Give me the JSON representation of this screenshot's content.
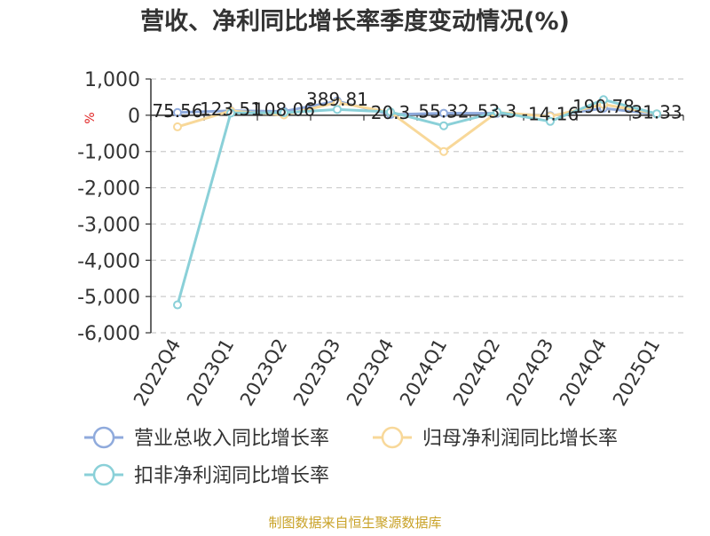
{
  "footer": "制图数据来自恒生聚源数据库",
  "chart_data": {
    "type": "line",
    "title": "营收、净利同比增长率季度变动情况(%)",
    "ylabel": "%",
    "xlabel": "",
    "categories": [
      "2022Q4",
      "2023Q1",
      "2023Q2",
      "2023Q3",
      "2023Q4",
      "2024Q1",
      "2024Q2",
      "2024Q3",
      "2024Q4",
      "2025Q1"
    ],
    "ylim": [
      -6000,
      1000
    ],
    "yticks": [
      1000,
      0,
      -1000,
      -2000,
      -3000,
      -4000,
      -5000,
      -6000
    ],
    "ytick_labels": [
      "1,000",
      "0",
      "-1,000",
      "-2,000",
      "-3,000",
      "-4,000",
      "-5,000",
      "-6,000"
    ],
    "grid": true,
    "legend_position": "bottom",
    "series": [
      {
        "name": "营业总收入同比增长率",
        "color": "#8faadc",
        "values": [
          75.56,
          123.51,
          108.06,
          389.81,
          20.3,
          55.32,
          53.3,
          -14.16,
          190.78,
          31.33
        ],
        "labels": [
          "75.56",
          "123.51",
          "108.06",
          "389.81",
          "20.3",
          "55.32",
          "53.3",
          "-14.16",
          "190.78",
          "31.33"
        ]
      },
      {
        "name": "归母净利润同比增长率",
        "color": "#f8d899",
        "values": [
          -320,
          120,
          10,
          350,
          80,
          -1000,
          80,
          -30,
          300,
          40
        ]
      },
      {
        "name": "扣非净利润同比增长率",
        "color": "#8ad0d8",
        "values": [
          -5230,
          60,
          70,
          160,
          90,
          -290,
          90,
          -170,
          430,
          40
        ]
      }
    ]
  }
}
